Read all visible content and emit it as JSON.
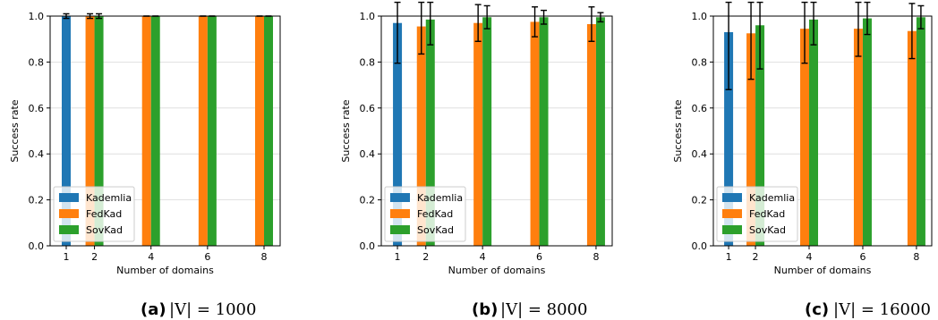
{
  "chart_data": [
    {
      "type": "bar",
      "caption_label": "(a)",
      "caption_expr": "|V| = 1000",
      "xlabel": "Number of domains",
      "ylabel": "Success rate",
      "ylim": [
        0,
        1.0
      ],
      "yticks": [
        "0.0",
        "0.2",
        "0.4",
        "0.6",
        "0.8",
        "1.0"
      ],
      "grid": "y",
      "legend_position": "lower-left",
      "series": [
        {
          "name": "Kademlia",
          "color": "#1f77b4",
          "points": [
            {
              "x": 1,
              "y": 1.0,
              "err": 0.01
            }
          ]
        },
        {
          "name": "FedKad",
          "color": "#ff7f0e",
          "points": [
            {
              "x": 2,
              "y": 1.0,
              "err": 0.01
            },
            {
              "x": 4,
              "y": 1.0,
              "err": 0.0
            },
            {
              "x": 6,
              "y": 1.0,
              "err": 0.0
            },
            {
              "x": 8,
              "y": 1.0,
              "err": 0.0
            }
          ]
        },
        {
          "name": "SovKad",
          "color": "#2ca02c",
          "points": [
            {
              "x": 2,
              "y": 1.0,
              "err": 0.01
            },
            {
              "x": 4,
              "y": 1.0,
              "err": 0.0
            },
            {
              "x": 6,
              "y": 1.0,
              "err": 0.0
            },
            {
              "x": 8,
              "y": 1.0,
              "err": 0.0
            }
          ]
        }
      ]
    },
    {
      "type": "bar",
      "caption_label": "(b)",
      "caption_expr": "|V| = 8000",
      "xlabel": "Number of domains",
      "ylabel": "Success rate",
      "ylim": [
        0,
        1.0
      ],
      "yticks": [
        "0.0",
        "0.2",
        "0.4",
        "0.6",
        "0.8",
        "1.0"
      ],
      "grid": "y",
      "legend_position": "lower-left",
      "series": [
        {
          "name": "Kademlia",
          "color": "#1f77b4",
          "points": [
            {
              "x": 1,
              "y": 0.97,
              "err": 0.175
            }
          ]
        },
        {
          "name": "FedKad",
          "color": "#ff7f0e",
          "points": [
            {
              "x": 2,
              "y": 0.955,
              "err": 0.12
            },
            {
              "x": 4,
              "y": 0.97,
              "err": 0.08
            },
            {
              "x": 6,
              "y": 0.975,
              "err": 0.065
            },
            {
              "x": 8,
              "y": 0.965,
              "err": 0.075
            }
          ]
        },
        {
          "name": "SovKad",
          "color": "#2ca02c",
          "points": [
            {
              "x": 2,
              "y": 0.985,
              "err": 0.11
            },
            {
              "x": 4,
              "y": 0.995,
              "err": 0.05
            },
            {
              "x": 6,
              "y": 0.995,
              "err": 0.03
            },
            {
              "x": 8,
              "y": 0.995,
              "err": 0.02
            }
          ]
        }
      ]
    },
    {
      "type": "bar",
      "caption_label": "(c)",
      "caption_expr": "|V| = 16000",
      "xlabel": "Number of domains",
      "ylabel": "Success rate",
      "ylim": [
        0,
        1.0
      ],
      "yticks": [
        "0.0",
        "0.2",
        "0.4",
        "0.6",
        "0.8",
        "1.0"
      ],
      "grid": "y",
      "legend_position": "lower-left",
      "series": [
        {
          "name": "Kademlia",
          "color": "#1f77b4",
          "points": [
            {
              "x": 1,
              "y": 0.93,
              "err": 0.25
            }
          ]
        },
        {
          "name": "FedKad",
          "color": "#ff7f0e",
          "points": [
            {
              "x": 2,
              "y": 0.925,
              "err": 0.2
            },
            {
              "x": 4,
              "y": 0.945,
              "err": 0.15
            },
            {
              "x": 6,
              "y": 0.945,
              "err": 0.12
            },
            {
              "x": 8,
              "y": 0.935,
              "err": 0.12
            }
          ]
        },
        {
          "name": "SovKad",
          "color": "#2ca02c",
          "points": [
            {
              "x": 2,
              "y": 0.96,
              "err": 0.19
            },
            {
              "x": 4,
              "y": 0.985,
              "err": 0.11
            },
            {
              "x": 6,
              "y": 0.99,
              "err": 0.07
            },
            {
              "x": 8,
              "y": 0.995,
              "err": 0.05
            }
          ]
        }
      ]
    }
  ]
}
